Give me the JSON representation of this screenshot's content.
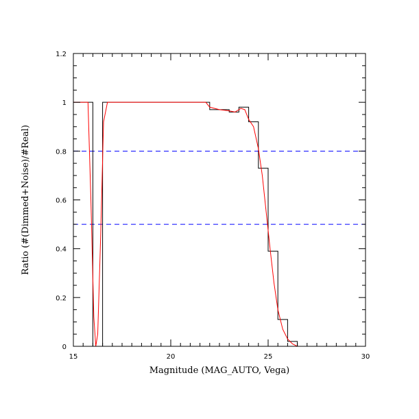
{
  "chart_data": {
    "type": "line",
    "title": "",
    "xlabel": "Magnitude (MAG_AUTO, Vega)",
    "ylabel": "Ratio (#(Dimmed+Noise)/#Real)",
    "xlim": [
      15,
      30
    ],
    "ylim": [
      0,
      1.2
    ],
    "x_ticks": [
      15,
      20,
      25,
      30
    ],
    "y_ticks": [
      0,
      0.2,
      0.4,
      0.6,
      0.8,
      1,
      1.2
    ],
    "x_tick_labels": [
      "15",
      "20",
      "25",
      "30"
    ],
    "y_tick_labels": [
      "0",
      "0.2",
      "0.4",
      "0.6",
      "0.8",
      "1",
      "1.2"
    ],
    "grid": false,
    "reference_lines": [
      {
        "y": 0.8,
        "style": "dashed",
        "color": "#0000ff"
      },
      {
        "y": 0.5,
        "style": "dashed",
        "color": "#0000ff"
      }
    ],
    "series": [
      {
        "kind": "step-histogram",
        "color": "#000000",
        "bin_edges": [
          15.0,
          15.5,
          16.0,
          16.5,
          17.0,
          17.5,
          18.0,
          18.5,
          19.0,
          19.5,
          20.0,
          20.5,
          21.0,
          21.5,
          22.0,
          22.5,
          23.0,
          23.5,
          24.0,
          24.5,
          25.0,
          25.5,
          26.0,
          26.5,
          27.0,
          27.5,
          28.0,
          28.5,
          29.0,
          29.5,
          30.0
        ],
        "values": [
          1.0,
          1.0,
          0.0,
          1.0,
          1.0,
          1.0,
          1.0,
          1.0,
          1.0,
          1.0,
          1.0,
          1.0,
          1.0,
          1.0,
          0.97,
          0.97,
          0.96,
          0.98,
          0.92,
          0.73,
          0.39,
          0.11,
          0.02,
          0.0,
          0.0,
          0.0,
          0.0,
          0.0,
          0.0,
          0.0
        ]
      },
      {
        "kind": "smooth-curve",
        "color": "#ff0000",
        "x": [
          15.0,
          15.5,
          15.75,
          15.9,
          16.05,
          16.15,
          16.25,
          16.4,
          16.55,
          16.75,
          17.0,
          18.0,
          19.0,
          20.0,
          21.0,
          21.8,
          22.0,
          22.5,
          23.0,
          23.3,
          23.6,
          23.8,
          24.0,
          24.25,
          24.5,
          24.7,
          24.9,
          25.1,
          25.3,
          25.5,
          25.75,
          26.0,
          26.25,
          26.5,
          27.0,
          28.0,
          29.0,
          30.0
        ],
        "y": [
          1.0,
          1.0,
          1.0,
          0.6,
          0.12,
          0.0,
          0.05,
          0.45,
          0.92,
          1.0,
          1.0,
          1.0,
          1.0,
          1.0,
          1.0,
          1.0,
          0.98,
          0.97,
          0.965,
          0.96,
          0.975,
          0.97,
          0.93,
          0.9,
          0.81,
          0.7,
          0.55,
          0.4,
          0.26,
          0.15,
          0.07,
          0.03,
          0.01,
          0.0,
          0.0,
          0.0,
          0.0,
          0.0
        ]
      }
    ]
  }
}
